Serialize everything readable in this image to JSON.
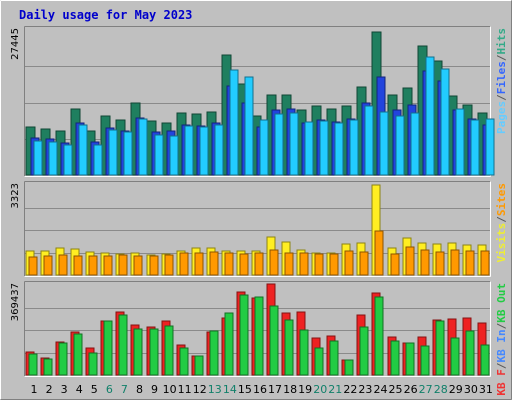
{
  "chart_data": [
    {
      "type": "bar",
      "title": "Daily usage for May 2023",
      "y_max_label": "27445",
      "legend": [
        {
          "name": "Pages",
          "color": "#66ccff"
        },
        {
          "name": "/",
          "color": "#5a5a5a"
        },
        {
          "name": "Files",
          "color": "#3366ff"
        },
        {
          "name": "/",
          "color": "#5a5a5a"
        },
        {
          "name": "Hits",
          "color": "#33aa88"
        }
      ],
      "categories": [
        "1",
        "2",
        "3",
        "4",
        "5",
        "6",
        "7",
        "8",
        "9",
        "10",
        "11",
        "12",
        "13",
        "14",
        "15",
        "16",
        "17",
        "18",
        "19",
        "20",
        "21",
        "22",
        "23",
        "24",
        "25",
        "26",
        "27",
        "28",
        "29",
        "30",
        "31"
      ],
      "weekend_days": [
        "6",
        "7",
        "13",
        "14",
        "20",
        "21",
        "27",
        "28"
      ],
      "ylim": [
        0,
        27445
      ],
      "series": [
        {
          "name": "Hits",
          "color": "#1f7f5f",
          "values": [
            9100,
            8800,
            8300,
            12500,
            8300,
            11100,
            10500,
            13700,
            10300,
            9800,
            11800,
            11600,
            11900,
            22800,
            17300,
            11100,
            15200,
            15200,
            12300,
            13000,
            12500,
            13000,
            16600,
            27100,
            15100,
            16400,
            24500,
            21500,
            14900,
            13300,
            11800
          ]
        },
        {
          "name": "Files",
          "color": "#2244dd",
          "values": [
            7000,
            6800,
            6000,
            9900,
            6300,
            8900,
            8300,
            10800,
            8100,
            8300,
            9500,
            9300,
            9800,
            16900,
            13700,
            9100,
            12300,
            12400,
            9800,
            10400,
            10100,
            10600,
            13700,
            18500,
            12300,
            13200,
            19700,
            17800,
            12300,
            10600,
            9500
          ]
        },
        {
          "name": "Pages",
          "color": "#22ccff",
          "values": [
            6500,
            6200,
            5700,
            9500,
            5700,
            8600,
            8100,
            10600,
            7500,
            7300,
            9200,
            9100,
            9500,
            19800,
            18600,
            10500,
            11500,
            11800,
            10100,
            10200,
            9900,
            10400,
            13100,
            11900,
            11200,
            11800,
            22400,
            20000,
            12500,
            10500,
            10600
          ]
        }
      ]
    },
    {
      "type": "bar",
      "y_max_label": "3323",
      "legend": [
        {
          "name": "Visits",
          "color": "#eeee33"
        },
        {
          "name": "/",
          "color": "#5a5a5a"
        },
        {
          "name": "Sites",
          "color": "#ff9900"
        }
      ],
      "categories": [
        "1",
        "2",
        "3",
        "4",
        "5",
        "6",
        "7",
        "8",
        "9",
        "10",
        "11",
        "12",
        "13",
        "14",
        "15",
        "16",
        "17",
        "18",
        "19",
        "20",
        "21",
        "22",
        "23",
        "24",
        "25",
        "26",
        "27",
        "28",
        "29",
        "30",
        "31"
      ],
      "ylim": [
        0,
        3323
      ],
      "series": [
        {
          "name": "Visits",
          "color": "#ffee22",
          "values": [
            900,
            900,
            980,
            960,
            850,
            800,
            780,
            800,
            750,
            790,
            880,
            990,
            990,
            900,
            880,
            900,
            1400,
            1200,
            930,
            830,
            800,
            1130,
            1180,
            3323,
            1000,
            1380,
            1180,
            1130,
            1180,
            1110,
            1100
          ]
        },
        {
          "name": "Sites",
          "color": "#ff9900",
          "values": [
            680,
            690,
            740,
            700,
            690,
            690,
            720,
            690,
            690,
            720,
            800,
            820,
            840,
            820,
            790,
            820,
            940,
            820,
            820,
            790,
            780,
            880,
            860,
            1640,
            780,
            1040,
            920,
            860,
            940,
            900,
            870
          ]
        }
      ]
    },
    {
      "type": "bar",
      "y_max_label": "369437",
      "legend": [
        {
          "name": "KB F",
          "color": "#ee3333"
        },
        {
          "name": "/",
          "color": "#5a5a5a"
        },
        {
          "name": "KB In",
          "color": "#4488ff"
        },
        {
          "name": "/",
          "color": "#5a5a5a"
        },
        {
          "name": "KB Out",
          "color": "#22cc44"
        }
      ],
      "categories": [
        "1",
        "2",
        "3",
        "4",
        "5",
        "6",
        "7",
        "8",
        "9",
        "10",
        "11",
        "12",
        "13",
        "14",
        "15",
        "16",
        "17",
        "18",
        "19",
        "20",
        "21",
        "22",
        "23",
        "24",
        "25",
        "26",
        "27",
        "28",
        "29",
        "30",
        "31"
      ],
      "ylim": [
        0,
        369437
      ],
      "series": [
        {
          "name": "KB F",
          "color": "#ee2222",
          "values": [
            95000,
            70000,
            135000,
            175000,
            110000,
            220000,
            258000,
            205000,
            195000,
            220000,
            125000,
            80000,
            178000,
            235000,
            340000,
            315000,
            375000,
            255000,
            260000,
            150000,
            160000,
            60000,
            245000,
            335000,
            155000,
            130000,
            155000,
            225000,
            230000,
            235000,
            215000
          ]
        },
        {
          "name": "KB In",
          "color": "#4488ff",
          "values": [
            0,
            0,
            0,
            0,
            0,
            0,
            0,
            0,
            0,
            0,
            0,
            0,
            0,
            0,
            0,
            0,
            0,
            0,
            0,
            0,
            0,
            0,
            0,
            0,
            0,
            0,
            0,
            0,
            0,
            0,
            0
          ]
        },
        {
          "name": "KB Out",
          "color": "#22cc44",
          "values": [
            88000,
            65000,
            130000,
            170000,
            90000,
            220000,
            248000,
            190000,
            188000,
            200000,
            110000,
            80000,
            180000,
            255000,
            330000,
            320000,
            285000,
            225000,
            185000,
            110000,
            140000,
            60000,
            195000,
            320000,
            140000,
            130000,
            120000,
            220000,
            150000,
            180000,
            125000
          ]
        }
      ]
    }
  ]
}
